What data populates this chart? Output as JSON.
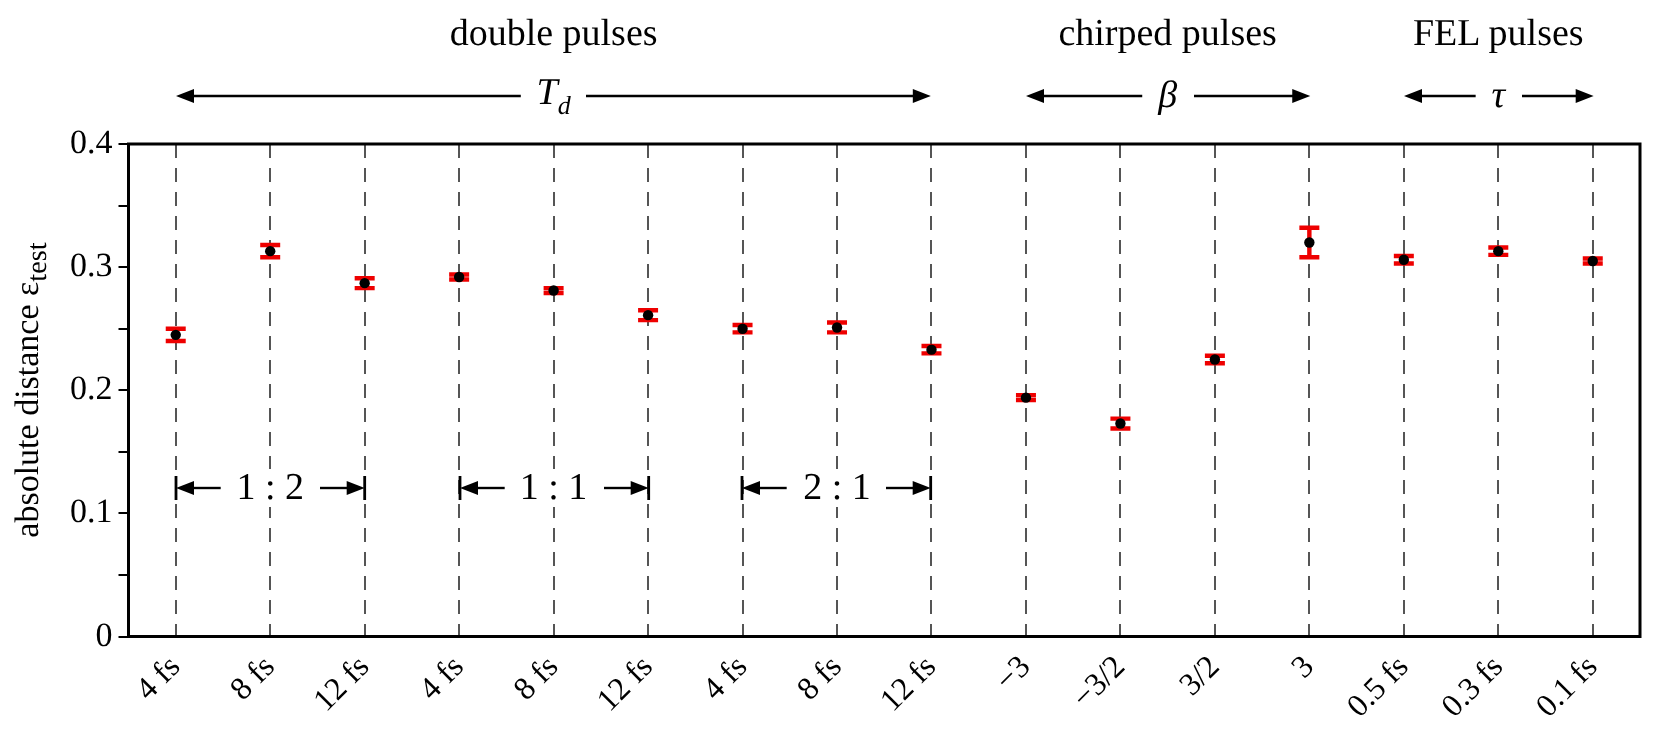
{
  "chart_data": {
    "type": "scatter",
    "ylabel": "absolute distance ε$_{test}$",
    "categories": [
      "4 fs",
      "8 fs",
      "12 fs",
      "4 fs",
      "8 fs",
      "12 fs",
      "4 fs",
      "8 fs",
      "12 fs",
      "−3",
      "−3/2",
      "3/2",
      "3",
      "0.5 fs",
      "0.3 fs",
      "0.1 fs"
    ],
    "series": [
      {
        "color": "#000000",
        "values": [
          0.245,
          0.313,
          0.287,
          0.292,
          0.281,
          0.261,
          0.25,
          0.251,
          0.233,
          0.194,
          0.173,
          0.225,
          0.32,
          0.306,
          0.313,
          0.305
        ],
        "errors": [
          0.005,
          0.005,
          0.004,
          0.002,
          0.002,
          0.004,
          0.003,
          0.004,
          0.003,
          0.002,
          0.004,
          0.003,
          0.012,
          0.003,
          0.003,
          0.002
        ]
      }
    ],
    "ylim": [
      0,
      0.4
    ],
    "yticks": [
      0,
      {
        "value": 0.05,
        "label": null
      },
      0.1,
      {
        "value": 0.15,
        "label": null
      },
      0.2,
      {
        "value": 0.25,
        "label": null
      },
      0.3,
      {
        "value": 0.35,
        "label": null
      },
      0.4
    ],
    "grid": "x",
    "marker": "circle",
    "annotations": [
      "double pulses",
      "T$_{d}$",
      "chirped pulses",
      "β",
      "FEL pulses",
      "τ",
      "1 : 2",
      "1 : 1",
      "2 : 1"
    ]
  }
}
